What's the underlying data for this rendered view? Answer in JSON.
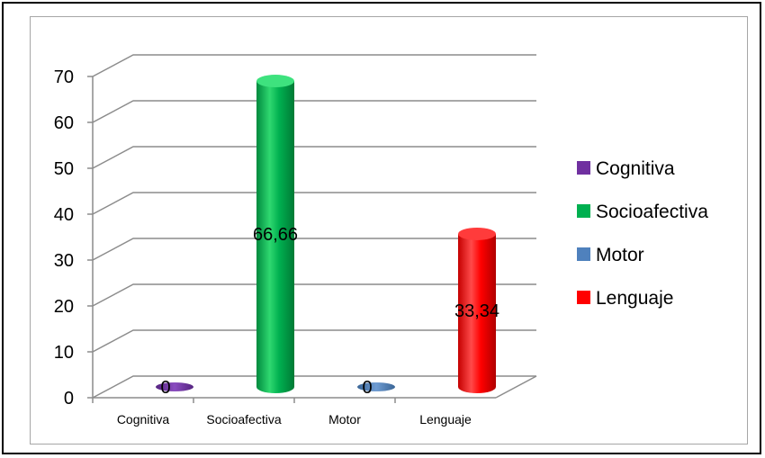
{
  "chart_data": {
    "type": "bar",
    "title": "",
    "xlabel": "",
    "ylabel": "",
    "categories": [
      "Cognitiva",
      "Socioafectiva",
      "Motor",
      "Lenguaje"
    ],
    "values": [
      0,
      66.66,
      0,
      33.34
    ],
    "data_labels": [
      "0",
      "66,66",
      "0",
      "33,34"
    ],
    "ylim": [
      0,
      70
    ],
    "yticks": [
      0,
      10,
      20,
      30,
      40,
      50,
      60,
      70
    ],
    "grid": true,
    "legend_position": "right",
    "legend": [
      "Cognitiva",
      "Socioafectiva",
      "Motor",
      "Lenguaje"
    ],
    "colors": [
      "#7030a0",
      "#00b050",
      "#4f81bd",
      "#ff0000"
    ]
  }
}
